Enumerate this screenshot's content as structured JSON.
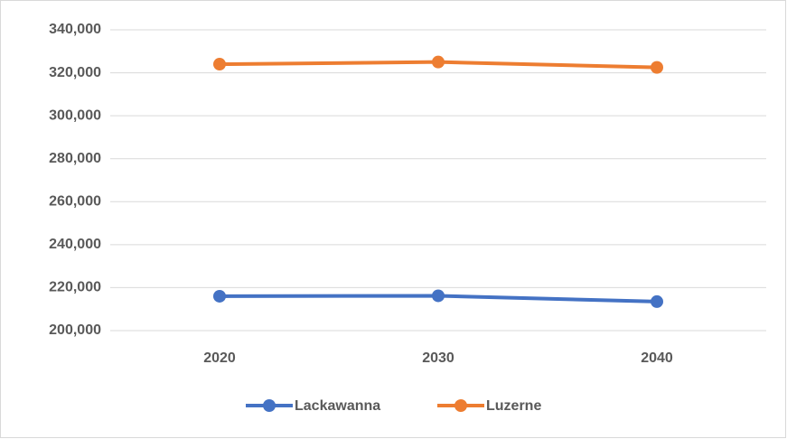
{
  "chart_data": {
    "type": "line",
    "categories": [
      "2020",
      "2030",
      "2040"
    ],
    "series": [
      {
        "name": "Lackawanna",
        "color": "#4472c4",
        "values": [
          216000,
          216200,
          213500
        ]
      },
      {
        "name": "Luzerne",
        "color": "#ed7d31",
        "values": [
          324000,
          325000,
          322500
        ]
      }
    ],
    "ylim": [
      200000,
      340000
    ],
    "yticks": [
      {
        "value": 200000,
        "label": "200,000"
      },
      {
        "value": 220000,
        "label": "220,000"
      },
      {
        "value": 240000,
        "label": "240,000"
      },
      {
        "value": 260000,
        "label": "260,000"
      },
      {
        "value": 280000,
        "label": "280,000"
      },
      {
        "value": 300000,
        "label": "300,000"
      },
      {
        "value": 320000,
        "label": "320,000"
      },
      {
        "value": 340000,
        "label": "340,000"
      }
    ],
    "grid": true,
    "legend": "bottom"
  }
}
